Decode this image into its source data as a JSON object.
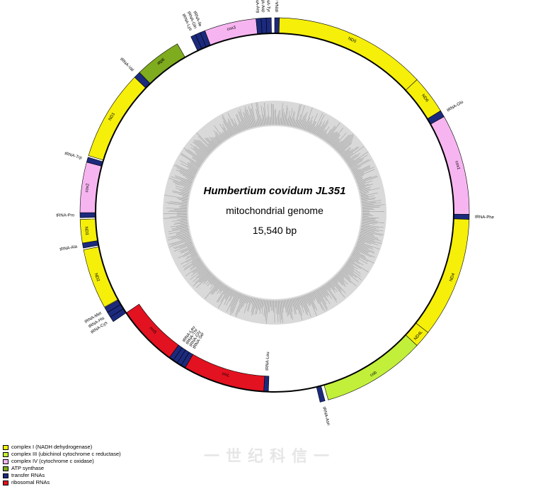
{
  "genome": {
    "species": "Humbertium covidum JL351",
    "description": "mitochondrial genome",
    "length": "15,540 bp"
  },
  "watermark": "一世纪科信一",
  "colors": {
    "complex_I": "#f5ef0a",
    "complex_III": "#c2ef3a",
    "complex_IV": "#f6b5f0",
    "atp": "#7fab1e",
    "trna": "#1c2a7e",
    "rrna": "#e21221",
    "gc_ring": "#d9d9d9",
    "gc_bars": "#a8a8a8"
  },
  "legend": [
    {
      "label": "complex I (NADH dehydrogenase)",
      "color_key": "complex_I"
    },
    {
      "label": "complex III (ubichinol cytochrome c reductase)",
      "color_key": "complex_III"
    },
    {
      "label": "complex IV (cytochrome c oxidase)",
      "color_key": "complex_IV"
    },
    {
      "label": "ATP synthase",
      "color_key": "atp"
    },
    {
      "label": "transfer RNAs",
      "color_key": "trna"
    },
    {
      "label": "ribosomal RNAs",
      "color_key": "rrna"
    }
  ],
  "genes": [
    {
      "name": "tRNA-Ser",
      "start_deg": 0.0,
      "end_deg": 1.4,
      "strand": "outer",
      "type": "trna"
    },
    {
      "name": "ND5",
      "start_deg": 1.4,
      "end_deg": 47.0,
      "strand": "outer",
      "type": "complex_I"
    },
    {
      "name": "ND6",
      "start_deg": 47.0,
      "end_deg": 58.5,
      "strand": "outer",
      "type": "complex_I"
    },
    {
      "name": "tRNA-Glu",
      "start_deg": 58.5,
      "end_deg": 60.5,
      "strand": "outer",
      "type": "trna"
    },
    {
      "name": "cox1",
      "start_deg": 60.5,
      "end_deg": 90.5,
      "strand": "outer",
      "type": "complex_IV"
    },
    {
      "name": "tRNA-Phe",
      "start_deg": 90.5,
      "end_deg": 92.0,
      "strand": "outer",
      "type": "trna"
    },
    {
      "name": "ND4",
      "start_deg": 92.0,
      "end_deg": 128.0,
      "strand": "outer",
      "type": "complex_I"
    },
    {
      "name": "ND4L",
      "start_deg": 128.0,
      "end_deg": 133.0,
      "strand": "outer",
      "type": "complex_I"
    },
    {
      "name": "cob",
      "start_deg": 133.0,
      "end_deg": 164.0,
      "strand": "outer",
      "type": "complex_III"
    },
    {
      "name": "tRNA-Asn",
      "start_deg": 165.0,
      "end_deg": 166.5,
      "strand": "outer",
      "type": "trna"
    },
    {
      "name": "tRNA-Leu",
      "start_deg": 182.0,
      "end_deg": 183.5,
      "strand": "inner",
      "type": "trna"
    },
    {
      "name": "rrnL",
      "start_deg": 183.5,
      "end_deg": 210.0,
      "strand": "inner",
      "type": "rrna"
    },
    {
      "name": "tRNA-Ser",
      "start_deg": 210.0,
      "end_deg": 211.5,
      "strand": "inner",
      "type": "trna"
    },
    {
      "name": "tRNA-Gly",
      "start_deg": 211.5,
      "end_deg": 213.0,
      "strand": "inner",
      "type": "trna"
    },
    {
      "name": "tRNA-Thr",
      "start_deg": 213.0,
      "end_deg": 214.5,
      "strand": "inner",
      "type": "trna"
    },
    {
      "name": "tRNA-Leu",
      "start_deg": 214.5,
      "end_deg": 216.0,
      "strand": "inner",
      "type": "trna"
    },
    {
      "name": "rrnS",
      "start_deg": 216.0,
      "end_deg": 236.0,
      "strand": "inner",
      "type": "rrna"
    },
    {
      "name": "tRNA-Cys",
      "start_deg": 236.0,
      "end_deg": 237.6,
      "strand": "outer",
      "type": "trna"
    },
    {
      "name": "tRNA-His",
      "start_deg": 237.6,
      "end_deg": 239.2,
      "strand": "outer",
      "type": "trna"
    },
    {
      "name": "tRNA-Met",
      "start_deg": 239.2,
      "end_deg": 240.8,
      "strand": "outer",
      "type": "trna"
    },
    {
      "name": "ND2",
      "start_deg": 241.0,
      "end_deg": 259.0,
      "strand": "outer",
      "type": "complex_I"
    },
    {
      "name": "tRNA-Ala",
      "start_deg": 259.5,
      "end_deg": 261.0,
      "strand": "outer",
      "type": "trna"
    },
    {
      "name": "ND3",
      "start_deg": 261.0,
      "end_deg": 268.0,
      "strand": "outer",
      "type": "complex_I"
    },
    {
      "name": "tRNA-Pro",
      "start_deg": 268.5,
      "end_deg": 270.0,
      "strand": "outer",
      "type": "trna"
    },
    {
      "name": "cox2",
      "start_deg": 270.0,
      "end_deg": 285.0,
      "strand": "outer",
      "type": "complex_IV"
    },
    {
      "name": "tRNA-Trp",
      "start_deg": 285.0,
      "end_deg": 286.5,
      "strand": "outer",
      "type": "trna"
    },
    {
      "name": "ND1",
      "start_deg": 287.0,
      "end_deg": 314.0,
      "strand": "outer",
      "type": "complex_I"
    },
    {
      "name": "tRNA-Val",
      "start_deg": 314.0,
      "end_deg": 316.0,
      "strand": "outer",
      "type": "trna"
    },
    {
      "name": "atp6",
      "start_deg": 316.0,
      "end_deg": 330.0,
      "strand": "outer",
      "type": "atp"
    },
    {
      "name": "tRNA-Lys",
      "start_deg": 334.5,
      "end_deg": 336.0,
      "strand": "outer",
      "type": "trna"
    },
    {
      "name": "tRNA-Gln",
      "start_deg": 336.0,
      "end_deg": 337.5,
      "strand": "outer",
      "type": "trna"
    },
    {
      "name": "tRNA-Ile",
      "start_deg": 337.5,
      "end_deg": 339.0,
      "strand": "outer",
      "type": "trna"
    },
    {
      "name": "cox3",
      "start_deg": 339.0,
      "end_deg": 354.5,
      "strand": "outer",
      "type": "complex_IV"
    },
    {
      "name": "tRNA-Arg",
      "start_deg": 354.5,
      "end_deg": 356.0,
      "strand": "outer",
      "type": "trna"
    },
    {
      "name": "tRNA-Asp",
      "start_deg": 356.0,
      "end_deg": 357.5,
      "strand": "outer",
      "type": "trna"
    },
    {
      "name": "tRNA-Tyr",
      "start_deg": 357.5,
      "end_deg": 359.0,
      "strand": "outer",
      "type": "trna"
    }
  ]
}
